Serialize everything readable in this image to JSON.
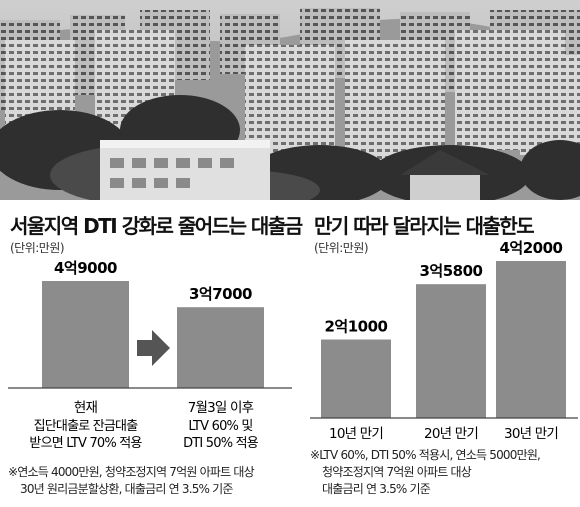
{
  "colors": {
    "bar": "#8c8c8c",
    "arrow": "#555555",
    "axis": "#444444"
  },
  "photo": {
    "icon": "apartment-complex-photo"
  },
  "chart_data": [
    {
      "type": "bar",
      "title": "서울지역 DTI 강화로 줄어드는 대출금",
      "unit_label": "(단위:만원)",
      "categories": [
        "현재",
        "7월3일 이후"
      ],
      "category_sublabels": [
        [
          "집단대출로 잔금대출",
          "받으면 LTV 70% 적용"
        ],
        [
          "LTV 60% 및",
          "DTI 50% 적용"
        ]
      ],
      "values": [
        49000,
        37000
      ],
      "data_labels": [
        "4억9000",
        "3억7000"
      ],
      "annotation": "arrow-right",
      "footnote": [
        "※연소득 4000만원, 청약조정지역 7억원 아파트 대상",
        "30년 원리금분할상환, 대출금리 연 3.5% 기준"
      ]
    },
    {
      "type": "bar",
      "title": "만기 따라 달라지는 대출한도",
      "unit_label": "(단위:만원)",
      "categories": [
        "10년 만기",
        "20년 만기",
        "30년 만기"
      ],
      "values": [
        21000,
        35800,
        42000
      ],
      "data_labels": [
        "2억1000",
        "3억5800",
        "4억2000"
      ],
      "footnote": [
        "※LTV 60%, DTI 50% 적용시, 연소득 5000만원,",
        "청약조정지역 7억원 아파트 대상",
        "대출금리 연 3.5% 기준"
      ]
    }
  ]
}
